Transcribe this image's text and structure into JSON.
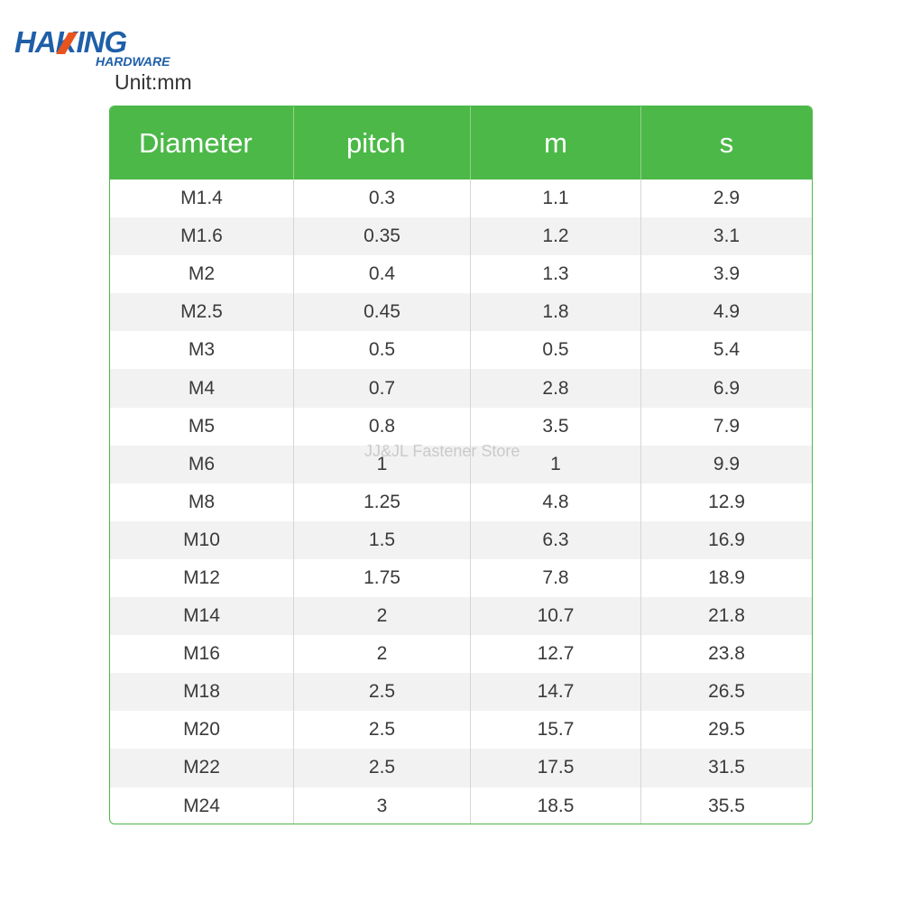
{
  "brand": {
    "name": "HAKING",
    "subtitle": "HARDWARE",
    "primary_color": "#1f5fa8",
    "accent_color": "#e8541e"
  },
  "unit_label": "Unit:mm",
  "watermark": "JJ&JL Fastener Store",
  "table": {
    "header_color": "#4cb848",
    "columns": [
      "Diameter",
      "pitch",
      "m",
      "s"
    ],
    "rows": [
      [
        "M1.4",
        "0.3",
        "1.1",
        "2.9"
      ],
      [
        "M1.6",
        "0.35",
        "1.2",
        "3.1"
      ],
      [
        "M2",
        "0.4",
        "1.3",
        "3.9"
      ],
      [
        "M2.5",
        "0.45",
        "1.8",
        "4.9"
      ],
      [
        "M3",
        "0.5",
        "0.5",
        "5.4"
      ],
      [
        "M4",
        "0.7",
        "2.8",
        "6.9"
      ],
      [
        "M5",
        "0.8",
        "3.5",
        "7.9"
      ],
      [
        "M6",
        "1",
        "1",
        "9.9"
      ],
      [
        "M8",
        "1.25",
        "4.8",
        "12.9"
      ],
      [
        "M10",
        "1.5",
        "6.3",
        "16.9"
      ],
      [
        "M12",
        "1.75",
        "7.8",
        "18.9"
      ],
      [
        "M14",
        "2",
        "10.7",
        "21.8"
      ],
      [
        "M16",
        "2",
        "12.7",
        "23.8"
      ],
      [
        "M18",
        "2.5",
        "14.7",
        "26.5"
      ],
      [
        "M20",
        "2.5",
        "15.7",
        "29.5"
      ],
      [
        "M22",
        "2.5",
        "17.5",
        "31.5"
      ],
      [
        "M24",
        "3",
        "18.5",
        "35.5"
      ]
    ]
  }
}
